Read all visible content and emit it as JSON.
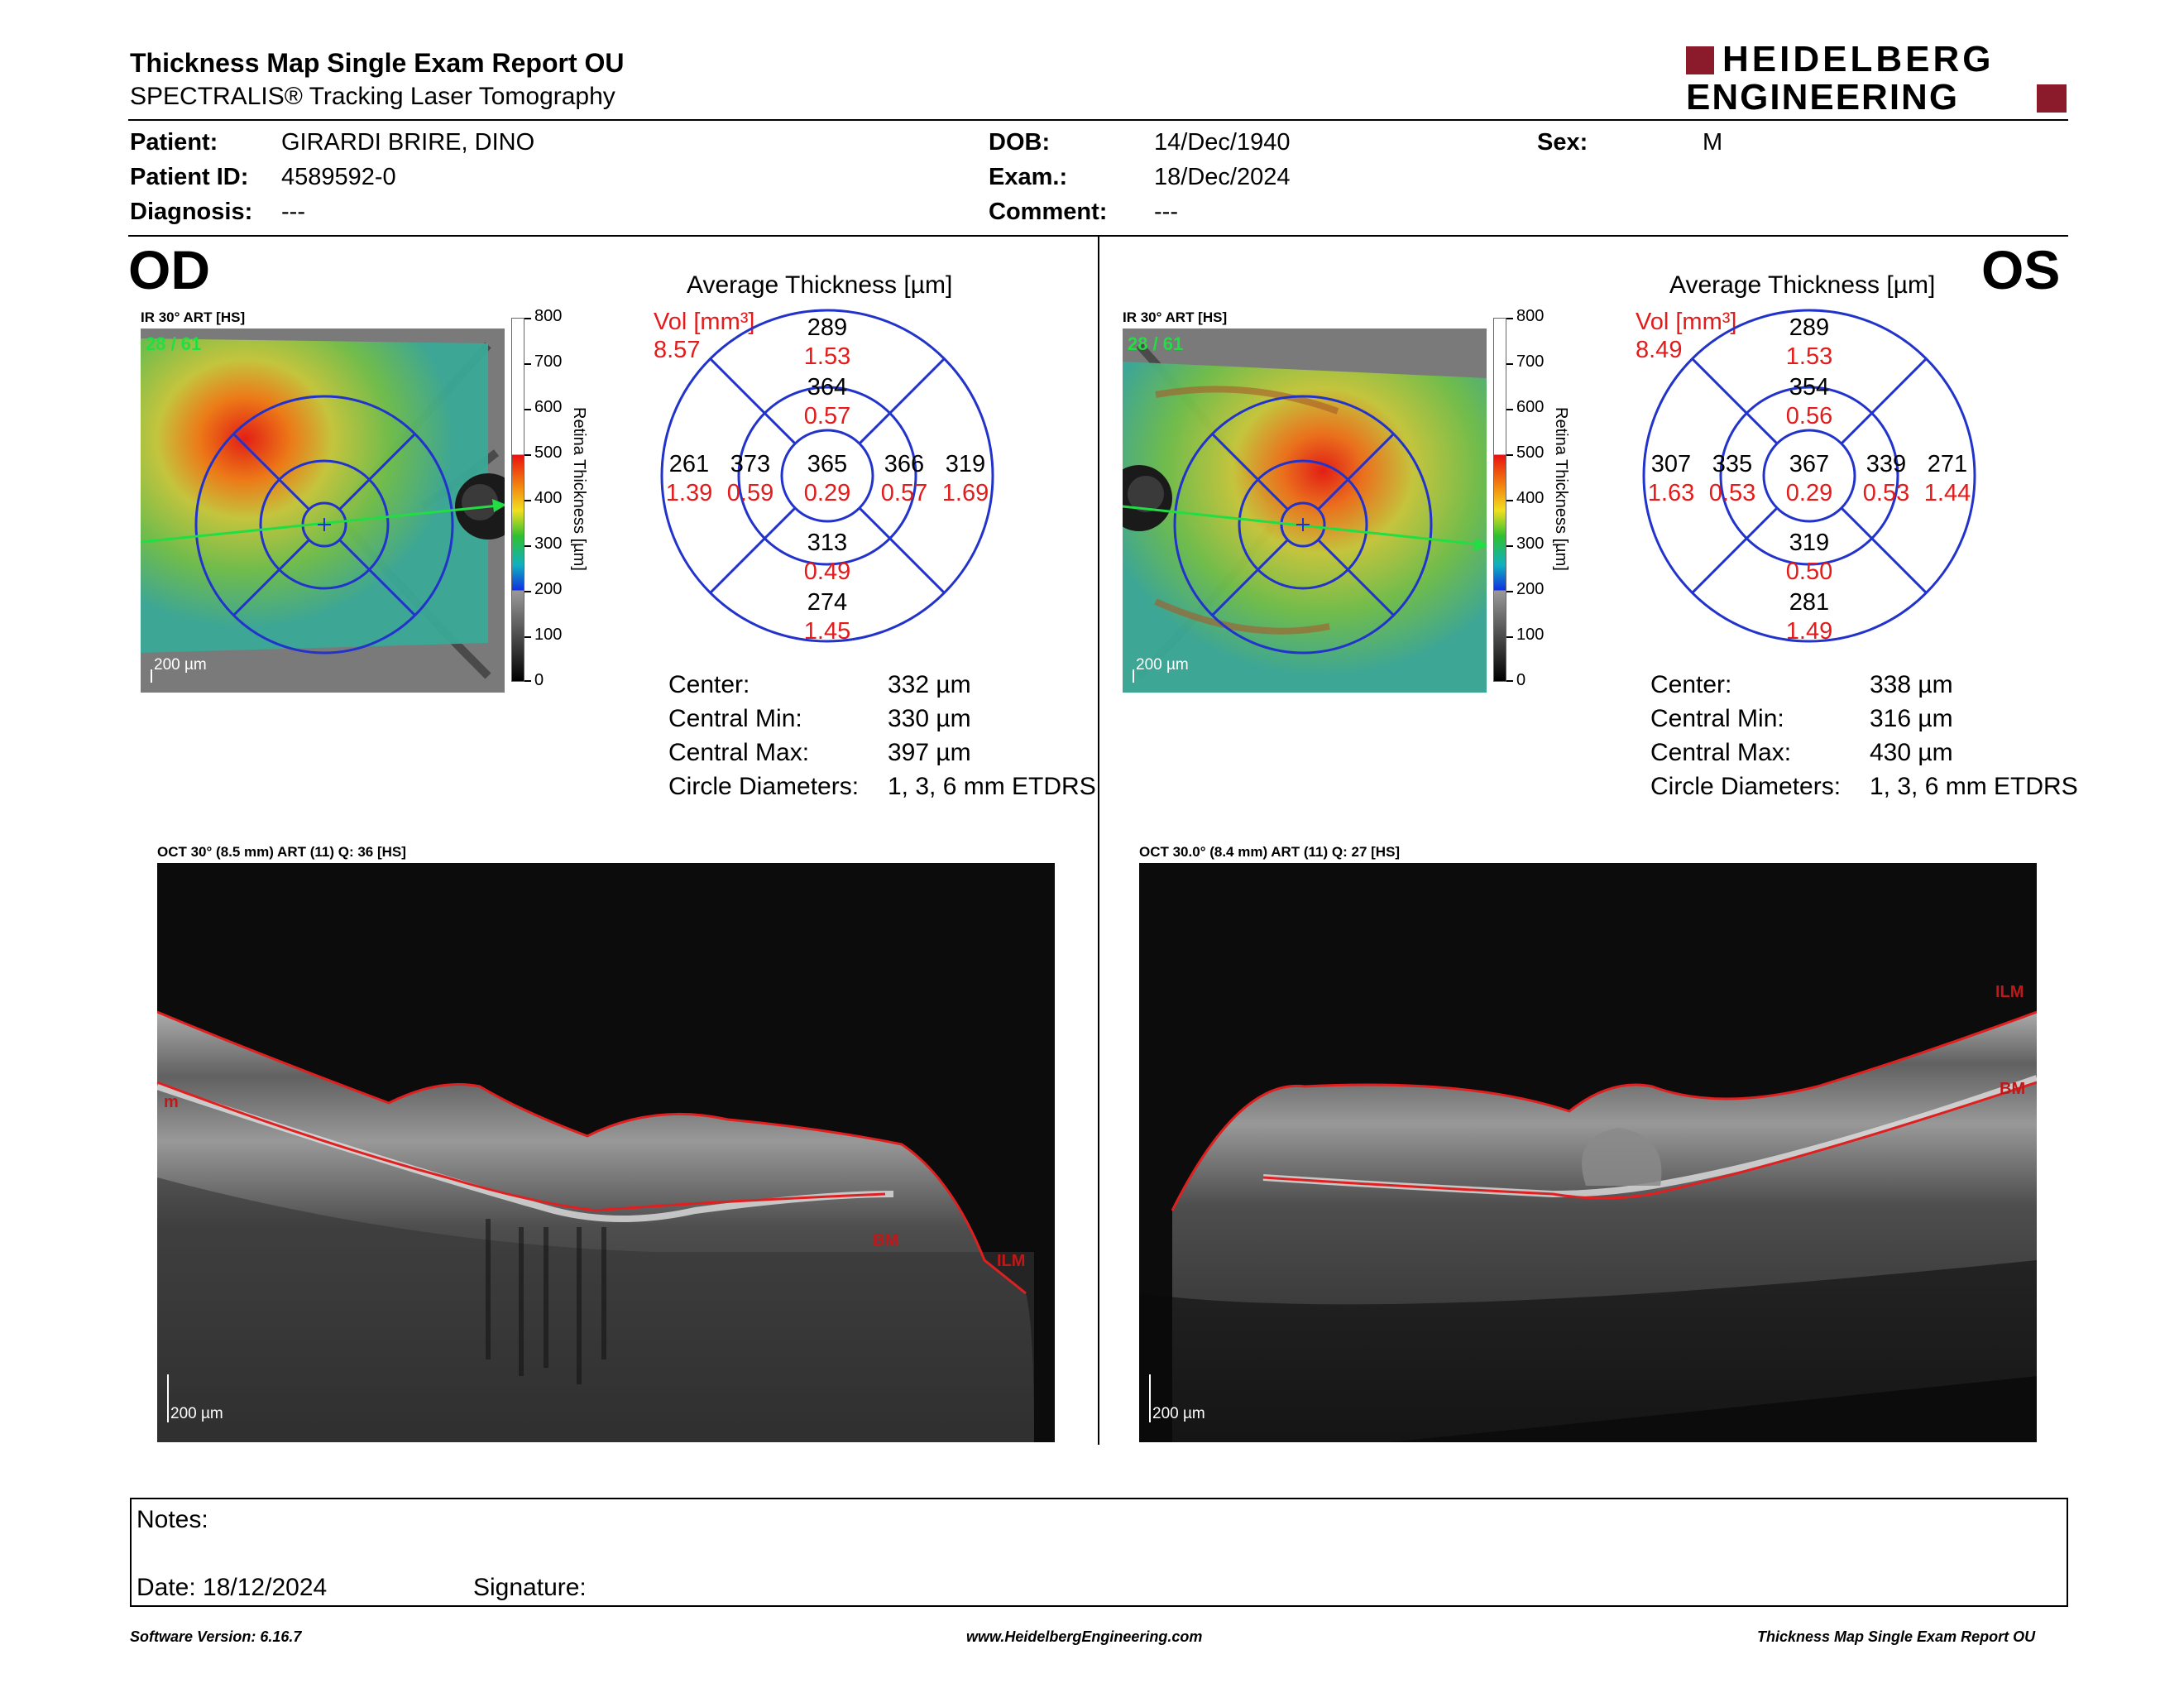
{
  "header": {
    "title": "Thickness Map Single Exam Report OU",
    "subtitle": "SPECTRALIS® Tracking Laser Tomography",
    "brand_line1": "HEIDELBERG",
    "brand_line2": "ENGINEERING",
    "brand_color": "#8b1a2b"
  },
  "patient": {
    "patient_label": "Patient:",
    "patient_value": "GIRARDI BRIRE, DINO",
    "pid_label": "Patient ID:",
    "pid_value": "4589592-0",
    "diag_label": "Diagnosis:",
    "diag_value": "---",
    "dob_label": "DOB:",
    "dob_value": "14/Dec/1940",
    "exam_label": "Exam.:",
    "exam_value": "18/Dec/2024",
    "comment_label": "Comment:",
    "comment_value": "---",
    "sex_label": "Sex:",
    "sex_value": "M"
  },
  "scale": {
    "ticks": [
      "800",
      "700",
      "600",
      "500",
      "400",
      "300",
      "200",
      "100",
      "0"
    ],
    "label": "Retina Thickness [µm]"
  },
  "od": {
    "eye": "OD",
    "ir_caption": "IR 30° ART [HS]",
    "frame": "28 / 61",
    "scalebar": "200 µm",
    "avg_title": "Average Thickness [µm]",
    "vol_label": "Vol [mm³]",
    "vol_value": "8.57",
    "sectors": {
      "outer_top": {
        "t": "289",
        "v": "1.53"
      },
      "inner_top": {
        "t": "364",
        "v": "0.57"
      },
      "center": {
        "t": "365",
        "v": "0.29"
      },
      "inner_left": {
        "t": "373",
        "v": "0.59"
      },
      "inner_right": {
        "t": "366",
        "v": "0.57"
      },
      "outer_left": {
        "t": "261",
        "v": "1.39"
      },
      "outer_right": {
        "t": "319",
        "v": "1.69"
      },
      "inner_bottom": {
        "t": "313",
        "v": "0.49"
      },
      "outer_bottom": {
        "t": "274",
        "v": "1.45"
      }
    },
    "stats": [
      {
        "label": "Center:",
        "value": "332 µm"
      },
      {
        "label": "Central Min:",
        "value": "330 µm"
      },
      {
        "label": "Central Max:",
        "value": "397 µm"
      },
      {
        "label": "Circle Diameters:",
        "value": "1, 3, 6 mm ETDRS"
      }
    ],
    "oct_caption": "OCT 30° (8.5 mm) ART (11) Q: 36 [HS]",
    "oct_scalebar": "200 µm",
    "lbl_ilm": "ILM",
    "lbl_bm": "BM",
    "lbl_ilm_left": "m"
  },
  "os": {
    "eye": "OS",
    "ir_caption": "IR 30° ART [HS]",
    "frame": "28 / 61",
    "scalebar": "200 µm",
    "avg_title": "Average Thickness [µm]",
    "vol_label": "Vol [mm³]",
    "vol_value": "8.49",
    "sectors": {
      "outer_top": {
        "t": "289",
        "v": "1.53"
      },
      "inner_top": {
        "t": "354",
        "v": "0.56"
      },
      "center": {
        "t": "367",
        "v": "0.29"
      },
      "inner_left": {
        "t": "335",
        "v": "0.53"
      },
      "inner_right": {
        "t": "339",
        "v": "0.53"
      },
      "outer_left": {
        "t": "307",
        "v": "1.63"
      },
      "outer_right": {
        "t": "271",
        "v": "1.44"
      },
      "inner_bottom": {
        "t": "319",
        "v": "0.50"
      },
      "outer_bottom": {
        "t": "281",
        "v": "1.49"
      }
    },
    "stats": [
      {
        "label": "Center:",
        "value": "338 µm"
      },
      {
        "label": "Central Min:",
        "value": "316 µm"
      },
      {
        "label": "Central Max:",
        "value": "430 µm"
      },
      {
        "label": "Circle Diameters:",
        "value": "1, 3, 6 mm ETDRS"
      }
    ],
    "oct_caption": "OCT 30.0° (8.4 mm) ART (11) Q: 27 [HS]",
    "oct_scalebar": "200 µm",
    "lbl_ilm": "ILM",
    "lbl_bm": "BM"
  },
  "notes": {
    "notes_label": "Notes:",
    "date_label": "Date: 18/12/2024",
    "signature_label": "Signature:"
  },
  "footer": {
    "software": "Software Version: 6.16.7",
    "website": "www.HeidelbergEngineering.com",
    "report": "Thickness Map Single Exam Report OU"
  }
}
